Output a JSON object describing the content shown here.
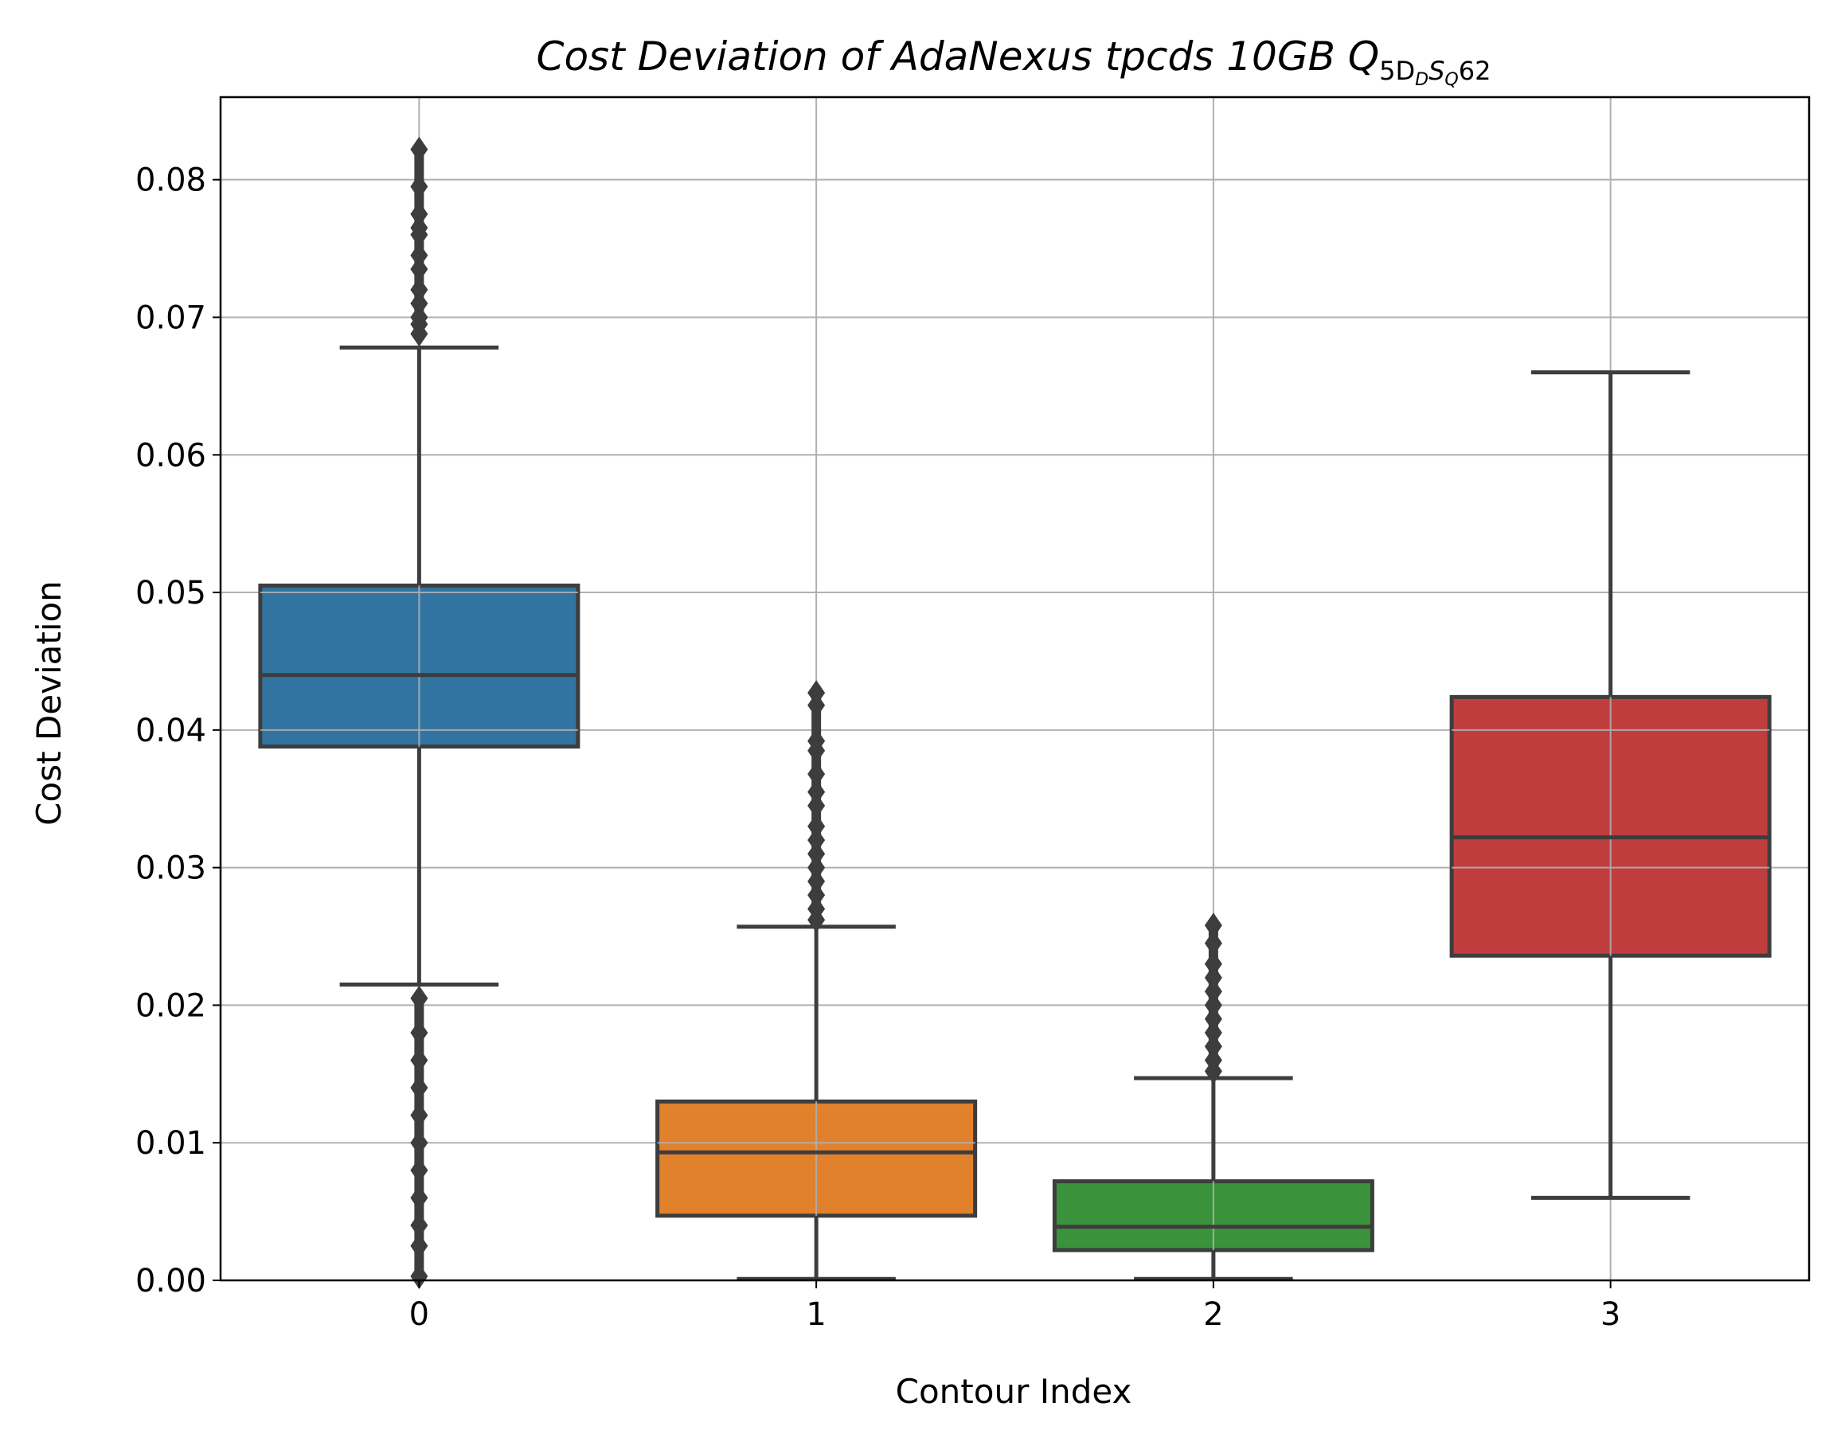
{
  "chart_data": {
    "type": "box",
    "title": {
      "prefix": "Cost Deviation of AdaNexus tpcds  10GB  ",
      "symbol": "Q",
      "sub_a": "5D",
      "sub_b": "D",
      "sub_c": "S",
      "sub_d": "Q",
      "sub_e": "62"
    },
    "xlabel": "Contour Index",
    "ylabel": "Cost Deviation",
    "ylim": [
      0,
      0.086
    ],
    "yticks": [
      "0.00",
      "0.01",
      "0.02",
      "0.03",
      "0.04",
      "0.05",
      "0.06",
      "0.07",
      "0.08"
    ],
    "ytick_values": [
      0,
      0.01,
      0.02,
      0.03,
      0.04,
      0.05,
      0.06,
      0.07,
      0.08
    ],
    "categories": [
      "0",
      "1",
      "2",
      "3"
    ],
    "grid": true,
    "boxes": [
      {
        "category": "0",
        "q1": 0.0388,
        "median": 0.044,
        "q3": 0.0505,
        "whisker_low": 0.0215,
        "whisker_high": 0.0678,
        "color": "#3274a1",
        "outliers_high": [
          0.0688,
          0.0695,
          0.07,
          0.071,
          0.072,
          0.0735,
          0.0745,
          0.076,
          0.0765,
          0.0775,
          0.0795,
          0.0822
        ],
        "outliers_low": [
          0.0003,
          0.0025,
          0.004,
          0.006,
          0.008,
          0.01,
          0.012,
          0.014,
          0.016,
          0.018,
          0.0205
        ]
      },
      {
        "category": "1",
        "q1": 0.0047,
        "median": 0.0093,
        "q3": 0.013,
        "whisker_low": 0.0001,
        "whisker_high": 0.0257,
        "color": "#e1812c",
        "outliers_high": [
          0.0262,
          0.027,
          0.028,
          0.029,
          0.03,
          0.031,
          0.032,
          0.033,
          0.0345,
          0.0355,
          0.0368,
          0.0385,
          0.0392,
          0.0418,
          0.0427
        ],
        "outliers_low": []
      },
      {
        "category": "2",
        "q1": 0.0022,
        "median": 0.0039,
        "q3": 0.0072,
        "whisker_low": 0.0001,
        "whisker_high": 0.0147,
        "color": "#3a923a",
        "outliers_high": [
          0.0152,
          0.016,
          0.017,
          0.018,
          0.019,
          0.02,
          0.021,
          0.022,
          0.023,
          0.0245,
          0.0258
        ],
        "outliers_low": []
      },
      {
        "category": "3",
        "q1": 0.0236,
        "median": 0.0322,
        "q3": 0.0424,
        "whisker_low": 0.006,
        "whisker_high": 0.066,
        "color": "#c03d3e",
        "outliers_high": [],
        "outliers_low": []
      }
    ],
    "line_color": "#3d3d3d",
    "grid_color": "#b0b0b0"
  }
}
